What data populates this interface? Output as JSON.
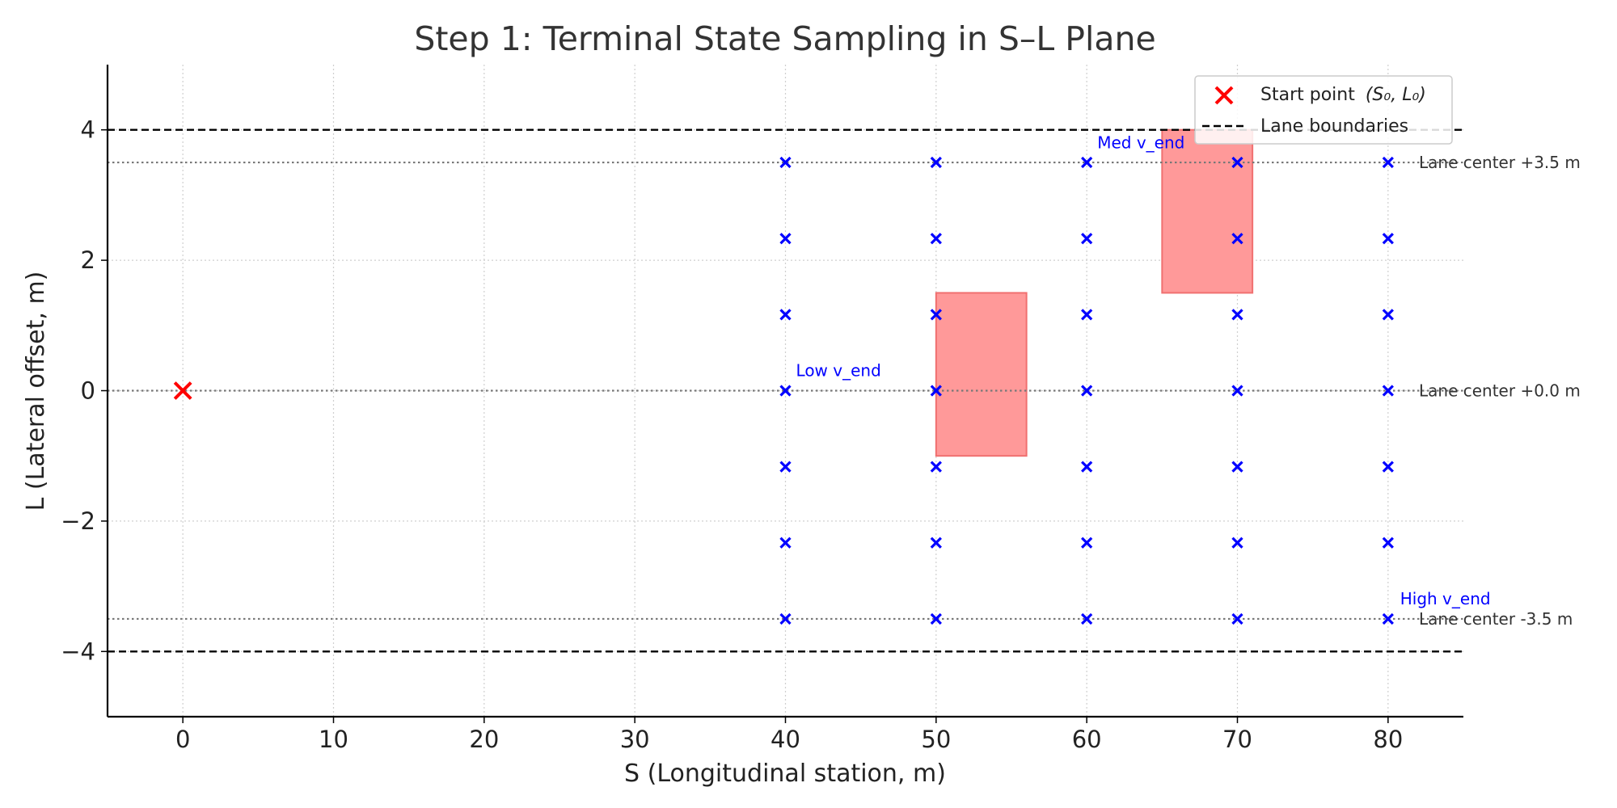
{
  "chart_data": {
    "type": "scatter",
    "title": "Step 1: Terminal State Sampling in S–L Plane",
    "xlabel": "S (Longitudinal station, m)",
    "ylabel": "L (Lateral offset, m)",
    "xlim": [
      -5,
      85
    ],
    "ylim": [
      -5,
      5
    ],
    "xticks": [
      0,
      10,
      20,
      30,
      40,
      50,
      60,
      70,
      80
    ],
    "yticks": [
      -4,
      -2,
      0,
      2,
      4
    ],
    "ytick_labels": [
      "−4",
      "−2",
      "0",
      "2",
      "4"
    ],
    "grid": true,
    "legend_position": "top-right",
    "start_point": {
      "s": 0,
      "l": 0,
      "color": "#ff0000"
    },
    "sample_s": [
      40,
      50,
      60,
      70,
      80
    ],
    "sample_l": [
      -3.5,
      -2.333,
      -1.167,
      0,
      1.167,
      2.333,
      3.5
    ],
    "sample_color": "#0000ff",
    "lane_boundaries": [
      4,
      -4
    ],
    "lane_centers": [
      {
        "l": 3.5,
        "label": "Lane center +3.5 m"
      },
      {
        "l": 0,
        "label": "Lane center +0.0 m"
      },
      {
        "l": -3.5,
        "label": "Lane center -3.5 m"
      }
    ],
    "obstacles": [
      {
        "s": [
          50,
          56
        ],
        "l": [
          -1,
          1.5
        ],
        "color": "#ff9999"
      },
      {
        "s": [
          65,
          71
        ],
        "l": [
          1.5,
          4
        ],
        "color": "#ff9999"
      }
    ],
    "annotations": [
      {
        "text": "Low v_end",
        "s": 40.7,
        "l": 0.22
      },
      {
        "text": "Med v_end",
        "s": 60.7,
        "l": 3.72
      },
      {
        "text": "High v_end",
        "s": 80.8,
        "l": -3.28
      }
    ],
    "legend": [
      {
        "label": "Start point",
        "math": "(S₀, L₀)"
      },
      {
        "label": "Lane boundaries"
      }
    ]
  }
}
